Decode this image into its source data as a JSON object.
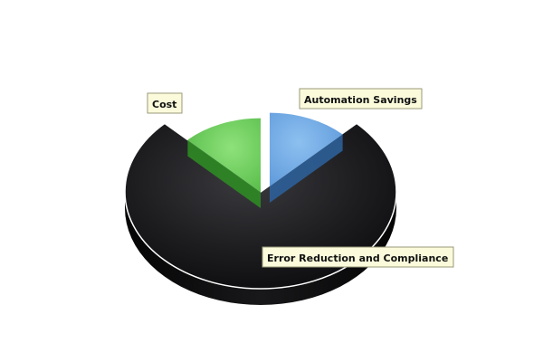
{
  "chart_data": {
    "type": "pie",
    "style": "3d",
    "categories": [
      "Automation Savings",
      "Error Reduction and Compliance",
      "Cost"
    ],
    "values": [
      12.5,
      75,
      12.5
    ],
    "unit": "%",
    "colors": [
      "#5f9ee0",
      "#1a1a1c",
      "#6dd35a"
    ],
    "legend": "none",
    "grid": false
  }
}
